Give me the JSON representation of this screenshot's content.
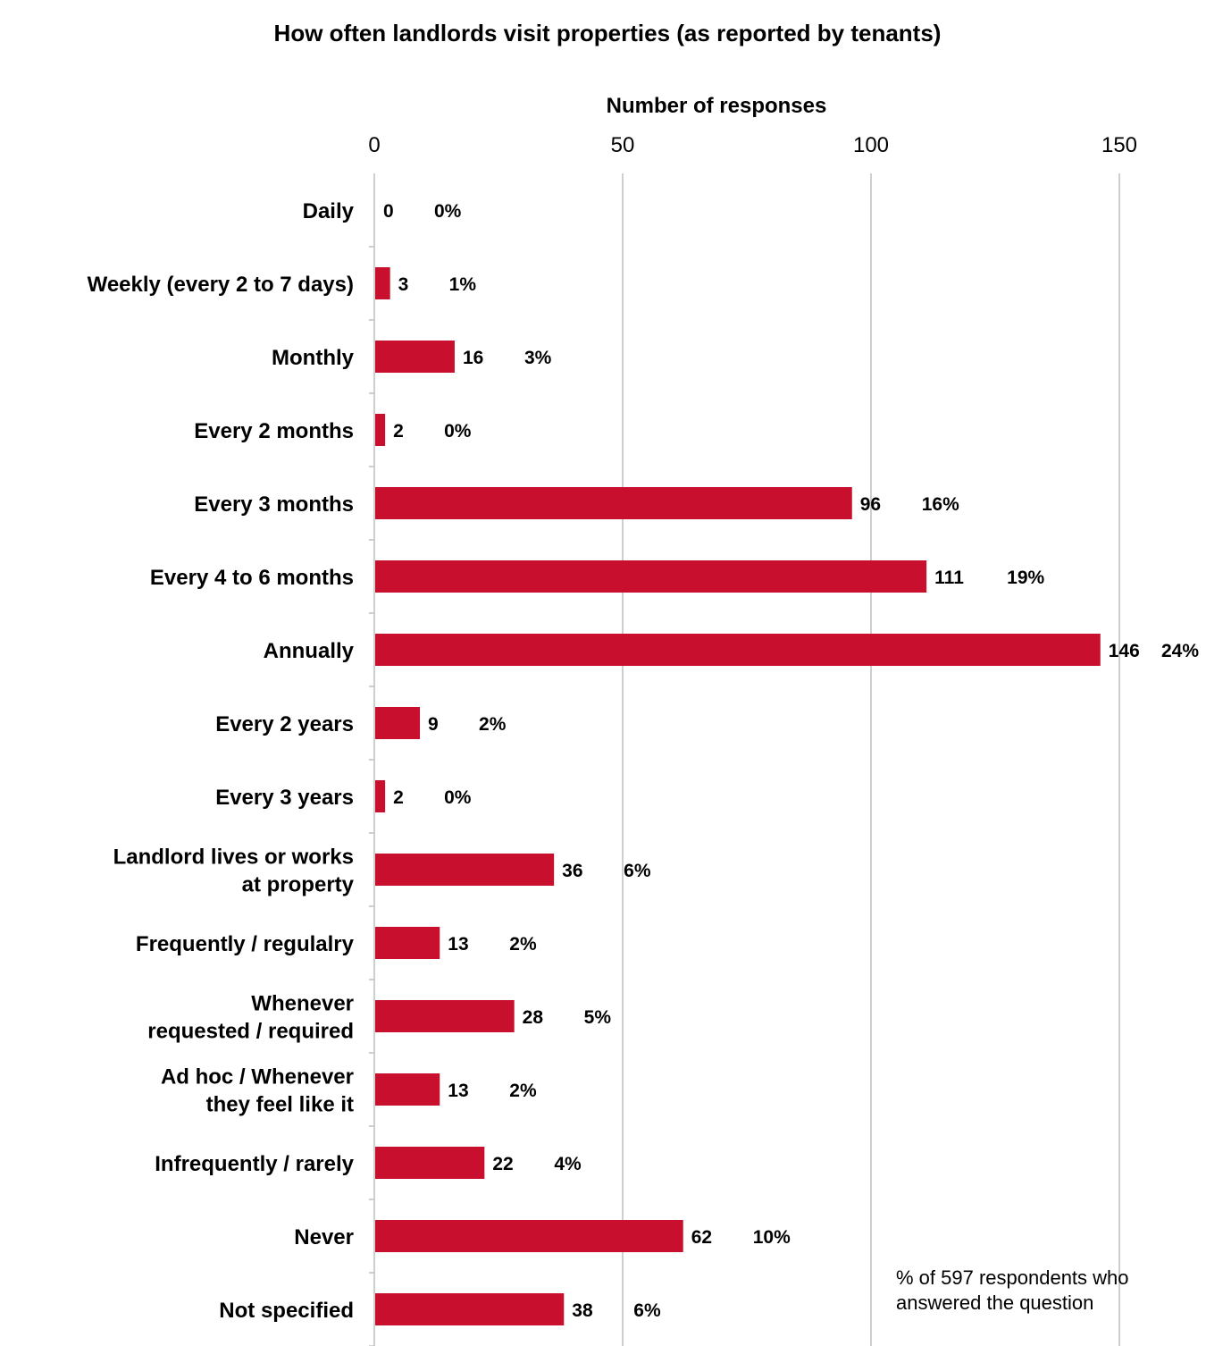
{
  "chart_data": {
    "type": "bar",
    "orientation": "horizontal",
    "title": "How often landlords visit properties (as reported by tenants)",
    "xlabel": "Number of responses",
    "ylabel": "",
    "xlim": [
      0,
      150
    ],
    "x_ticks": [
      0,
      50,
      100,
      150
    ],
    "grid": true,
    "categories": [
      [
        "Daily"
      ],
      [
        "Weekly (every 2 to 7 days)"
      ],
      [
        "Monthly"
      ],
      [
        "Every 2 months"
      ],
      [
        "Every 3 months"
      ],
      [
        "Every 4 to 6 months"
      ],
      [
        "Annually"
      ],
      [
        "Every 2 years"
      ],
      [
        "Every 3 years"
      ],
      [
        "Landlord lives or works",
        "at property"
      ],
      [
        "Frequently / regulalry"
      ],
      [
        "Whenever",
        "requested / required"
      ],
      [
        "Ad hoc / Whenever",
        "they feel like it"
      ],
      [
        "Infrequently / rarely"
      ],
      [
        "Never"
      ],
      [
        "Not specified"
      ]
    ],
    "values": [
      0,
      3,
      16,
      2,
      96,
      111,
      146,
      9,
      2,
      36,
      13,
      28,
      13,
      22,
      62,
      38
    ],
    "percent_labels": [
      "0%",
      "1%",
      "3%",
      "0%",
      "16%",
      "19%",
      "24%",
      "2%",
      "0%",
      "6%",
      "2%",
      "5%",
      "2%",
      "4%",
      "10%",
      "6%"
    ],
    "annotation": [
      "% of 597 respondents who",
      "answered the question"
    ],
    "bar_color": "#c8102e",
    "grid_color": "#bfbfbf",
    "axis_color": "#bfbfbf"
  }
}
